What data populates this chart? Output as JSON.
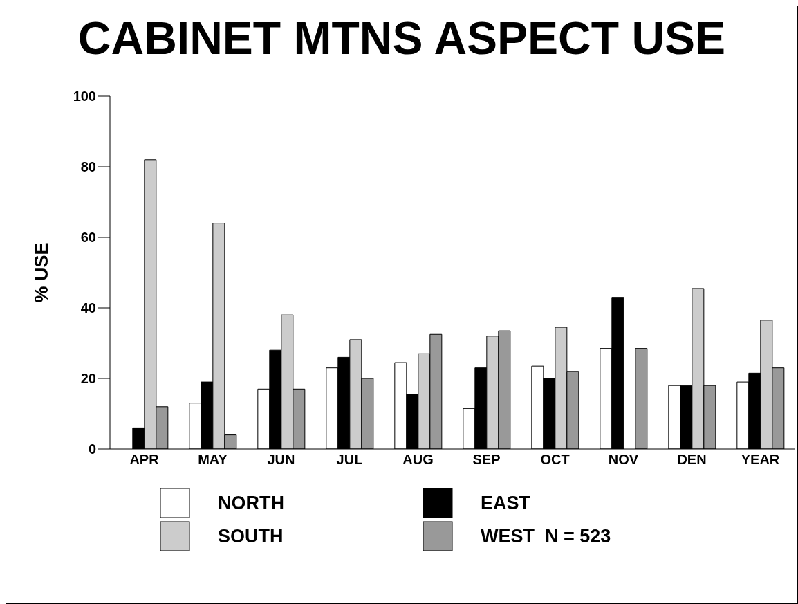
{
  "chart_data": {
    "type": "bar",
    "title": "CABINET MTNS ASPECT USE",
    "ylabel": "% USE",
    "categories": [
      "APR",
      "MAY",
      "JUN",
      "JUL",
      "AUG",
      "SEP",
      "OCT",
      "NOV",
      "DEN",
      "YEAR"
    ],
    "series": [
      {
        "name": "NORTH",
        "color": "#ffffff",
        "values": [
          0,
          13,
          17,
          23,
          24.5,
          11.5,
          23.5,
          28.5,
          18,
          19
        ]
      },
      {
        "name": "EAST",
        "color": "#000000",
        "values": [
          6,
          19,
          28,
          26,
          15.5,
          23,
          20,
          43,
          18,
          21.5
        ]
      },
      {
        "name": "SOUTH",
        "color": "#cccccc",
        "values": [
          82,
          64,
          38,
          31,
          27,
          32,
          34.5,
          0,
          45.5,
          36.5
        ]
      },
      {
        "name": "WEST  N = 523",
        "color": "#999999",
        "values": [
          12,
          4,
          17,
          20,
          32.5,
          33.5,
          22,
          28.5,
          18,
          23
        ]
      }
    ],
    "ylim": [
      0,
      100
    ],
    "yticks": [
      0,
      20,
      40,
      60,
      80,
      100
    ],
    "grid": false,
    "legend": "bottom"
  }
}
